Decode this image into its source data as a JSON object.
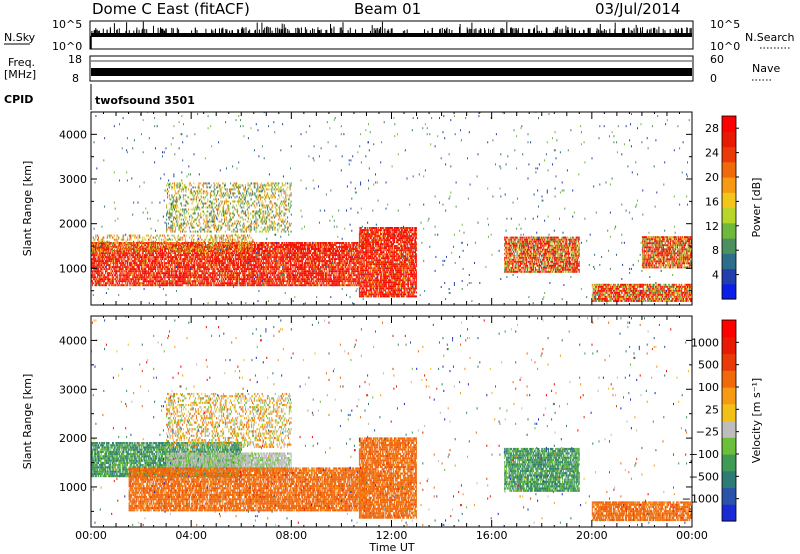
{
  "header": {
    "title": "Dome C East (fitACF)",
    "beam": "Beam 01",
    "date": "03/Jul/2014"
  },
  "top_panels": {
    "nsky_label": "N.Sky",
    "nsearch_label": "N.Search",
    "freq_label": "Freq.",
    "freq_unit": "[MHz]",
    "nave_label": "Nave",
    "cpid_label": "CPID",
    "cpid_value": "twofsound 3501",
    "noise_ticks": [
      "10^5",
      "10^0"
    ],
    "freq_ticks": [
      "18",
      "8"
    ],
    "nave_ticks": [
      "60",
      "0"
    ]
  },
  "chart_data": [
    {
      "type": "heatmap",
      "title": "",
      "xlabel": "Time UT",
      "ylabel": "Slant Range [km]",
      "x_ticks": [
        "00:00",
        "04:00",
        "08:00",
        "12:00",
        "16:00",
        "20:00",
        "00:00"
      ],
      "xlim_hours": [
        0,
        24
      ],
      "y_ticks": [
        1000,
        2000,
        3000,
        4000
      ],
      "ylim": [
        180,
        4500
      ],
      "colorbar_label": "Power [dB]",
      "colorbar_ticks": [
        "28",
        "24",
        "20",
        "16",
        "12",
        "8",
        "4"
      ],
      "colorbar_range": [
        0,
        30
      ],
      "colorbar_colors": [
        "#0a1ee6",
        "#233fae",
        "#2e6e8a",
        "#4c9060",
        "#6fb83c",
        "#b6d62a",
        "#f2c61a",
        "#f59a12",
        "#f06a0c",
        "#ea3a08",
        "#e81a04",
        "#ff0000"
      ],
      "regions": [
        {
          "t0": 0.0,
          "t1": 10.7,
          "r0": 600,
          "r1": 1550,
          "level": "strong"
        },
        {
          "t0": 0.0,
          "t1": 6.5,
          "r0": 1350,
          "r1": 1750,
          "level": "edge"
        },
        {
          "t0": 10.7,
          "t1": 13.0,
          "r0": 350,
          "r1": 1900,
          "level": "strong"
        },
        {
          "t0": 16.5,
          "t1": 19.5,
          "r0": 900,
          "r1": 1700,
          "level": "medium"
        },
        {
          "t0": 22.0,
          "t1": 24.0,
          "r0": 1000,
          "r1": 1700,
          "level": "medium"
        },
        {
          "t0": 20.0,
          "t1": 24.0,
          "r0": 250,
          "r1": 650,
          "level": "medium"
        },
        {
          "t0": 3.0,
          "t1": 8.0,
          "r0": 1800,
          "r1": 2900,
          "level": "weak"
        },
        {
          "t0": 0.0,
          "t1": 24.0,
          "r0": 200,
          "r1": 4500,
          "level": "sparse"
        }
      ]
    },
    {
      "type": "heatmap",
      "title": "",
      "xlabel": "Time UT",
      "ylabel": "Slant Range [km]",
      "x_ticks": [
        "00:00",
        "04:00",
        "08:00",
        "12:00",
        "16:00",
        "20:00",
        "00:00"
      ],
      "xlim_hours": [
        0,
        24
      ],
      "y_ticks": [
        1000,
        2000,
        3000,
        4000
      ],
      "ylim": [
        180,
        4500
      ],
      "colorbar_label": "Velocity [m s⁻¹]",
      "colorbar_ticks": [
        "1000",
        "500",
        "100",
        "25",
        "−25",
        "−100",
        "−500",
        "−1000"
      ],
      "colorbar_range": [
        -1200,
        1200
      ],
      "colorbar_colors": [
        "#1a2bd6",
        "#2a52a8",
        "#2e7a74",
        "#3f9a55",
        "#6cbf3a",
        "#bdbdbd",
        "#f2c017",
        "#f59a12",
        "#f06a0c",
        "#ea3a08",
        "#e81a04",
        "#ff0000"
      ],
      "regions": [
        {
          "t0": 0.0,
          "t1": 6.0,
          "r0": 1200,
          "r1": 1900,
          "level": "green"
        },
        {
          "t0": 3.0,
          "t1": 8.0,
          "r0": 1300,
          "r1": 1700,
          "level": "grey"
        },
        {
          "t0": 1.5,
          "t1": 11.0,
          "r0": 500,
          "r1": 1400,
          "level": "orange"
        },
        {
          "t0": 10.7,
          "t1": 13.0,
          "r0": 350,
          "r1": 2000,
          "level": "orange"
        },
        {
          "t0": 16.5,
          "t1": 19.5,
          "r0": 900,
          "r1": 1800,
          "level": "green"
        },
        {
          "t0": 20.0,
          "t1": 24.0,
          "r0": 300,
          "r1": 700,
          "level": "orange"
        },
        {
          "t0": 3.0,
          "t1": 8.0,
          "r0": 1800,
          "r1": 2900,
          "level": "mixed"
        },
        {
          "t0": 0.0,
          "t1": 24.0,
          "r0": 200,
          "r1": 4500,
          "level": "sparse"
        }
      ]
    }
  ]
}
